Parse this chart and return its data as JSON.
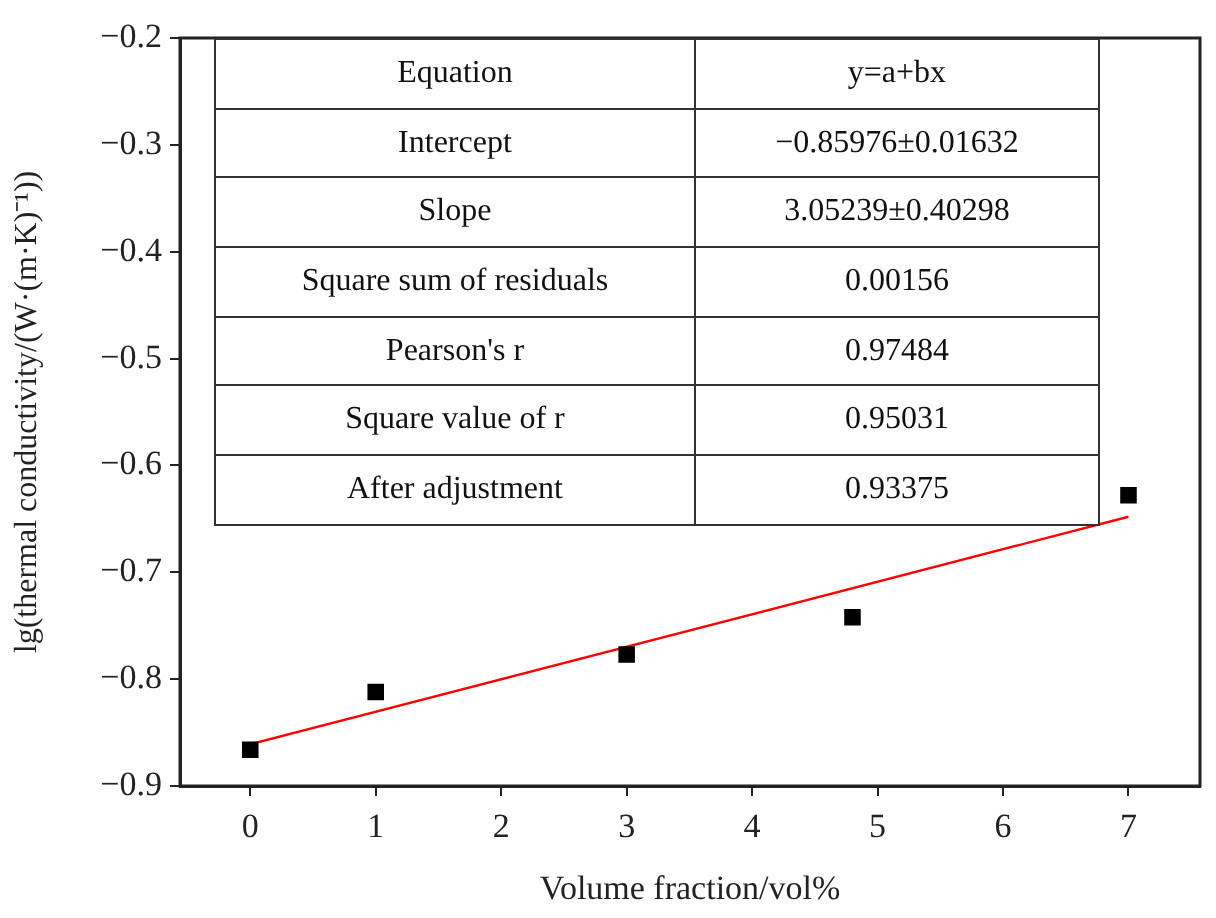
{
  "chart_data": {
    "type": "scatter",
    "xlabel": "Volume fraction/vol%",
    "ylabel": "lg(thermal conductivity/(W·(m·K)⁻¹))",
    "xlim": [
      -0.56,
      7.57
    ],
    "xticks": [
      0,
      1,
      2,
      3,
      4,
      5,
      6,
      7
    ],
    "ylim": [
      -0.9,
      -0.2
    ],
    "yticks": [
      {
        "value": -0.9,
        "label": "−0.9"
      },
      {
        "value": -0.8,
        "label": "−0.8"
      },
      {
        "value": -0.7,
        "label": "−0.7"
      },
      {
        "value": -0.6,
        "label": "−0.6"
      },
      {
        "value": -0.5,
        "label": "−0.5"
      },
      {
        "value": -0.4,
        "label": "−0.4"
      },
      {
        "value": -0.3,
        "label": "−0.3"
      },
      {
        "value": -0.2,
        "label": "−0.2"
      }
    ],
    "series": [
      {
        "type": "scatter",
        "color": "#000000",
        "marker": "square",
        "x": [
          0,
          1,
          3,
          4.8,
          7
        ],
        "values": [
          -0.866,
          -0.812,
          -0.777,
          -0.742,
          -0.628
        ]
      },
      {
        "type": "line",
        "color": "#ff0000",
        "marker": "none",
        "line_style": "solid",
        "x": [
          0,
          7
        ],
        "values": [
          -0.861,
          -0.648
        ]
      }
    ],
    "annotations": [
      "Equation",
      "y=a+bx",
      "Intercept",
      "−0.85976±0.01632",
      "Slope",
      "3.05239±0.40298",
      "Square sum of residuals",
      "0.00156",
      "Pearson's r",
      "0.97484",
      "Square value of r",
      "0.95031",
      "After adjustment",
      "0.93375"
    ],
    "grid": false,
    "legend": false
  }
}
